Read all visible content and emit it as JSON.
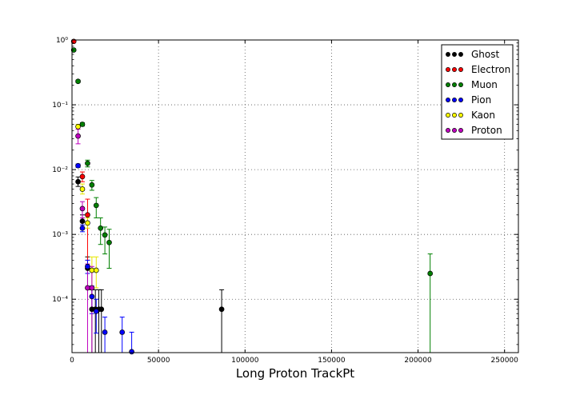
{
  "chart_data": {
    "type": "scatter",
    "title": "",
    "xlabel": "Long Proton TrackPt",
    "ylabel": "",
    "xlim": [
      0,
      258000
    ],
    "ylim": [
      1.5e-05,
      1.0
    ],
    "yscale": "log",
    "grid": true,
    "legend": "top-right",
    "x_ticks": [
      0,
      50000,
      100000,
      150000,
      200000,
      250000
    ],
    "x_tick_labels": [
      "0",
      "50000",
      "100000",
      "150000",
      "200000",
      "250000"
    ],
    "y_ticks": [
      0.0001,
      0.001,
      0.01,
      0.1,
      1
    ],
    "y_tick_labels": [
      "10⁻⁴",
      "10⁻³",
      "10⁻²",
      "10⁻¹",
      "10⁰"
    ],
    "series": [
      {
        "name": "Ghost",
        "color": "#000000",
        "points": [
          {
            "x": 3500,
            "y": 0.0065,
            "lo": 0.0055,
            "hi": 0.0077
          },
          {
            "x": 6000,
            "y": 0.0016,
            "lo": 0.0012,
            "hi": 0.002
          },
          {
            "x": 9000,
            "y": 0.0003,
            "lo": 0.00015,
            "hi": 0.00045
          },
          {
            "x": 11500,
            "y": 7e-05,
            "lo": 1.5e-05,
            "hi": 0.00014
          },
          {
            "x": 13500,
            "y": 7e-05,
            "lo": 1.5e-05,
            "hi": 0.00014
          },
          {
            "x": 15500,
            "y": 7e-05,
            "lo": 1.5e-05,
            "hi": 0.00014
          },
          {
            "x": 17000,
            "y": 7e-05,
            "lo": 1.5e-05,
            "hi": 0.00014
          },
          {
            "x": 86500,
            "y": 7e-05,
            "lo": 1.5e-05,
            "hi": 0.00014
          }
        ]
      },
      {
        "name": "Electron",
        "color": "#ff0000",
        "points": [
          {
            "x": 1000,
            "y": 0.95,
            "lo": 0.93,
            "hi": 0.97
          },
          {
            "x": 6000,
            "y": 0.0078,
            "lo": 0.0065,
            "hi": 0.0092
          },
          {
            "x": 9000,
            "y": 0.002,
            "lo": 0.0004,
            "hi": 0.0035
          }
        ]
      },
      {
        "name": "Muon",
        "color": "#008000",
        "points": [
          {
            "x": 1000,
            "y": 0.7,
            "lo": 0.68,
            "hi": 0.72
          },
          {
            "x": 3500,
            "y": 0.23,
            "lo": 0.22,
            "hi": 0.24
          },
          {
            "x": 6000,
            "y": 0.05,
            "lo": 0.047,
            "hi": 0.053
          },
          {
            "x": 9000,
            "y": 0.0125,
            "lo": 0.011,
            "hi": 0.014
          },
          {
            "x": 11500,
            "y": 0.0058,
            "lo": 0.0048,
            "hi": 0.0068
          },
          {
            "x": 14000,
            "y": 0.0028,
            "lo": 0.0018,
            "hi": 0.0037
          },
          {
            "x": 16500,
            "y": 0.00125,
            "lo": 0.0007,
            "hi": 0.0018
          },
          {
            "x": 19000,
            "y": 0.00098,
            "lo": 0.0005,
            "hi": 0.0013
          },
          {
            "x": 21500,
            "y": 0.00075,
            "lo": 0.0003,
            "hi": 0.0012
          },
          {
            "x": 207000,
            "y": 0.00025,
            "lo": 1.5e-05,
            "hi": 0.0005
          }
        ]
      },
      {
        "name": "Pion",
        "color": "#0000ff",
        "points": [
          {
            "x": 3500,
            "y": 0.0115,
            "lo": 0.0108,
            "hi": 0.0122
          },
          {
            "x": 6000,
            "y": 0.00125,
            "lo": 0.0011,
            "hi": 0.0014
          },
          {
            "x": 9000,
            "y": 0.00032,
            "lo": 0.00025,
            "hi": 0.0004
          },
          {
            "x": 11500,
            "y": 0.00011,
            "lo": 6e-05,
            "hi": 0.00016
          },
          {
            "x": 14000,
            "y": 6.5e-05,
            "lo": 3e-05,
            "hi": 0.0001
          },
          {
            "x": 19000,
            "y": 3.1e-05,
            "lo": 1.5e-05,
            "hi": 5.3e-05
          },
          {
            "x": 29000,
            "y": 3.1e-05,
            "lo": 1.5e-05,
            "hi": 5.3e-05
          },
          {
            "x": 34500,
            "y": 1.55e-05,
            "lo": 1.5e-05,
            "hi": 3.1e-05
          }
        ]
      },
      {
        "name": "Kaon",
        "color": "#ffff00",
        "points": [
          {
            "x": 3500,
            "y": 0.046,
            "lo": 0.042,
            "hi": 0.05
          },
          {
            "x": 6000,
            "y": 0.005,
            "lo": 0.0042,
            "hi": 0.006
          },
          {
            "x": 9000,
            "y": 0.0015,
            "lo": 0.00125,
            "hi": 0.0018
          },
          {
            "x": 11500,
            "y": 0.00028,
            "lo": 0.00015,
            "hi": 0.00045
          },
          {
            "x": 14000,
            "y": 0.00028,
            "lo": 0.00015,
            "hi": 0.00045
          }
        ]
      },
      {
        "name": "Proton",
        "color": "#bf00bf",
        "points": [
          {
            "x": 3500,
            "y": 0.033,
            "lo": 0.025,
            "hi": 0.042
          },
          {
            "x": 6000,
            "y": 0.0025,
            "lo": 0.0018,
            "hi": 0.0032
          },
          {
            "x": 9000,
            "y": 0.00015,
            "lo": 1.5e-05,
            "hi": 0.00035
          },
          {
            "x": 11500,
            "y": 0.00015,
            "lo": 1.5e-05,
            "hi": 0.00032
          }
        ]
      }
    ]
  }
}
